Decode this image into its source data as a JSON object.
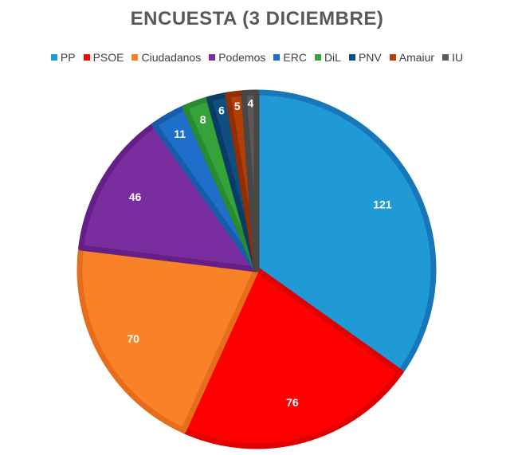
{
  "chart_data": {
    "type": "pie",
    "title": "ENCUESTA (3 DICIEMBRE)",
    "categories": [
      "PP",
      "PSOE",
      "Ciudadanos",
      "Podemos",
      "ERC",
      "DiL",
      "PNV",
      "Amaiur",
      "IU"
    ],
    "values": [
      121,
      76,
      70,
      46,
      11,
      8,
      6,
      5,
      4
    ],
    "colors": [
      "#1f9ad6",
      "#ff0000",
      "#f98128",
      "#7a2d9e",
      "#1e6fc9",
      "#35a33a",
      "#0f4e80",
      "#b33f06",
      "#595959"
    ],
    "borders": [
      "#1777b8",
      "#e00000",
      "#e56d1b",
      "#651f86",
      "#175bab",
      "#2a8a30",
      "#0a3d66",
      "#922f02",
      "#474747"
    ],
    "legend_position": "top",
    "data_labels": true
  }
}
